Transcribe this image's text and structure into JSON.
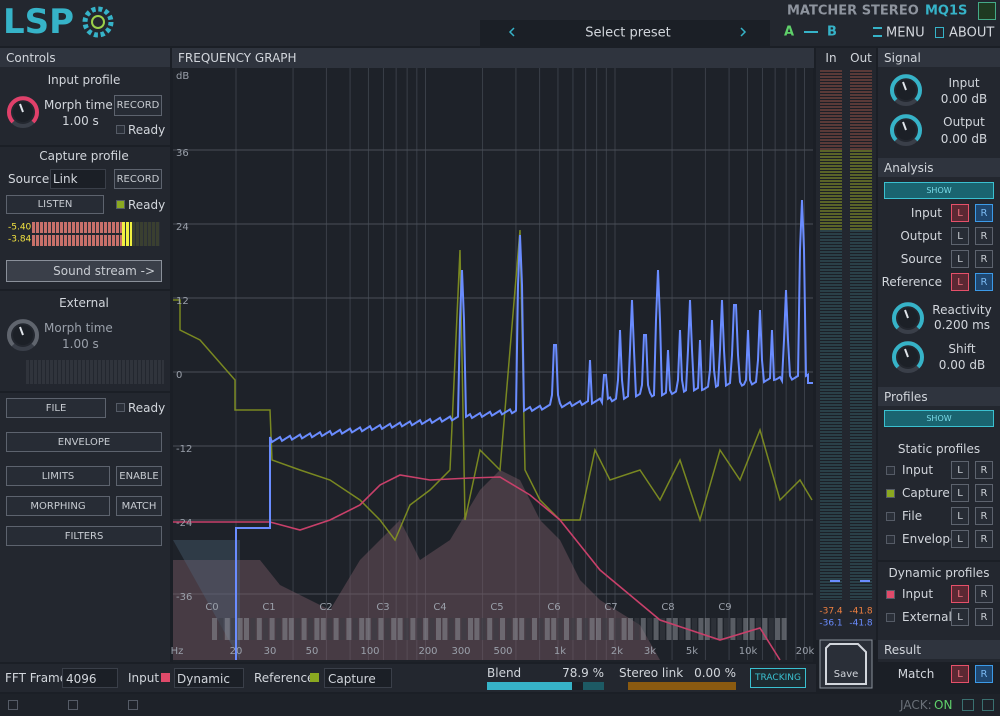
{
  "header": {
    "logo": "LSP",
    "plugin": "MATCHER STEREO",
    "code": "MQ1S",
    "preset": "Select preset",
    "a": "A",
    "b": "B",
    "menu": "MENU",
    "about": "ABOUT"
  },
  "controls": {
    "title": "Controls",
    "input_profile": {
      "title": "Input profile",
      "morph_label": "Morph time",
      "morph_value": "1.00 s",
      "record": "RECORD",
      "ready": "Ready"
    },
    "capture_profile": {
      "title": "Capture profile",
      "source_label": "Source",
      "source": "Link",
      "record": "RECORD",
      "listen": "LISTEN",
      "ready": "Ready",
      "level_l": "-5.40",
      "level_r": "-3.84",
      "stream": "Sound stream ->"
    },
    "external": {
      "title": "External",
      "morph_label": "Morph time",
      "morph_value": "1.00 s"
    },
    "file": "FILE",
    "file_ready": "Ready",
    "envelope": "ENVELOPE",
    "limits": "LIMITS",
    "enable": "ENABLE",
    "morphing": "MORPHING",
    "match": "MATCH",
    "filters": "FILTERS"
  },
  "graph": {
    "title": "FREQUENCY GRAPH",
    "unit": "dB",
    "db_ticks": [
      "36",
      "24",
      "12",
      "0",
      "-12",
      "-24",
      "-36"
    ],
    "freq_ticks": [
      "Hz",
      "20",
      "30",
      "50",
      "100",
      "200",
      "300",
      "500",
      "1k",
      "2k",
      "3k",
      "5k",
      "10k",
      "20k"
    ],
    "notes": [
      "C0",
      "C1",
      "C2",
      "C3",
      "C4",
      "C5",
      "C6",
      "C7",
      "C8",
      "C9"
    ]
  },
  "meters": {
    "in": "In",
    "out": "Out",
    "in_l": "-37.4",
    "in_r": "-36.1",
    "out_l": "-41.8",
    "out_r": "-41.8",
    "save": "Save"
  },
  "signal": {
    "title": "Signal",
    "input": "Input",
    "input_value": "0.00 dB",
    "output": "Output",
    "output_value": "0.00 dB"
  },
  "analysis": {
    "title": "Analysis",
    "show": "SHOW",
    "rows": [
      {
        "label": "Input",
        "l": "L",
        "r": "R"
      },
      {
        "label": "Output",
        "l": "L",
        "r": "R"
      },
      {
        "label": "Source",
        "l": "L",
        "r": "R"
      },
      {
        "label": "Reference",
        "l": "L",
        "r": "R"
      }
    ],
    "reactivity": "Reactivity",
    "reactivity_value": "0.200 ms",
    "shift": "Shift",
    "shift_value": "0.00 dB"
  },
  "profiles": {
    "title": "Profiles",
    "show": "SHOW"
  },
  "static_profiles": {
    "title": "Static profiles",
    "rows": [
      {
        "label": "Input",
        "l": "L",
        "r": "R"
      },
      {
        "label": "Capture",
        "l": "L",
        "r": "R"
      },
      {
        "label": "File",
        "l": "L",
        "r": "R"
      },
      {
        "label": "Envelope",
        "l": "L",
        "r": "R"
      }
    ]
  },
  "dynamic_profiles": {
    "title": "Dynamic profiles",
    "rows": [
      {
        "label": "Input",
        "l": "L",
        "r": "R"
      },
      {
        "label": "External",
        "l": "L",
        "r": "R"
      }
    ]
  },
  "result": {
    "title": "Result",
    "label": "Match",
    "l": "L",
    "r": "R"
  },
  "bottom": {
    "fft_label": "FFT Frame",
    "fft": "4096",
    "input_label": "Input",
    "input": "Dynamic",
    "reference_label": "Reference",
    "reference": "Capture",
    "blend_label": "Blend",
    "blend": "78.9 %",
    "stereo_label": "Stereo link",
    "stereo": "0.00 %",
    "tracking": "TRACKING"
  },
  "footer": {
    "jack": "JACK:",
    "status": "ON"
  }
}
